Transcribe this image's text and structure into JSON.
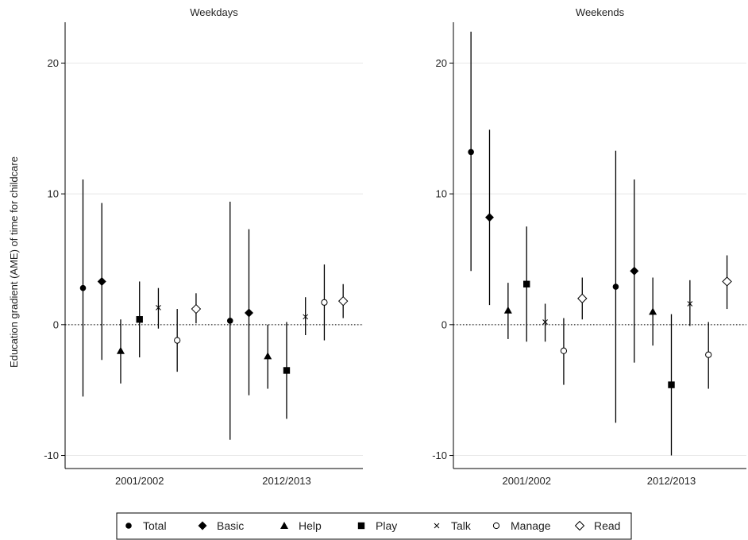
{
  "chart_data": {
    "type": "scatter",
    "subtype": "point-range (estimate with confidence interval)",
    "ylabel": "Education gradient (AME) of time for childcare",
    "ylim": [
      -11,
      23
    ],
    "yticks": [
      -10,
      0,
      10,
      20
    ],
    "ytick_labels": [
      "-10",
      "0",
      "10",
      "20"
    ],
    "reference_line": {
      "y": 0,
      "style": "dotted"
    },
    "grid": "horizontal",
    "legend": {
      "position": "bottom",
      "entries": [
        {
          "name": "Total",
          "marker": "filled-circle"
        },
        {
          "name": "Basic",
          "marker": "filled-diamond"
        },
        {
          "name": "Help",
          "marker": "filled-triangle"
        },
        {
          "name": "Play",
          "marker": "filled-square"
        },
        {
          "name": "Talk",
          "marker": "x"
        },
        {
          "name": "Manage",
          "marker": "hollow-circle"
        },
        {
          "name": "Read",
          "marker": "hollow-diamond"
        }
      ]
    },
    "categories": [
      "2001/2002",
      "2012/2013"
    ],
    "panels": [
      {
        "title": "Weekdays",
        "series": [
          {
            "name": "Total",
            "marker": "filled-circle",
            "values": [
              2.8,
              0.3
            ],
            "lower": [
              -5.5,
              -8.8
            ],
            "upper": [
              11.1,
              9.4
            ]
          },
          {
            "name": "Basic",
            "marker": "filled-diamond",
            "values": [
              3.3,
              0.9
            ],
            "lower": [
              -2.7,
              -5.4
            ],
            "upper": [
              9.3,
              7.3
            ]
          },
          {
            "name": "Help",
            "marker": "filled-triangle",
            "values": [
              -2.0,
              -2.4
            ],
            "lower": [
              -4.5,
              -4.9
            ],
            "upper": [
              0.4,
              0.0
            ]
          },
          {
            "name": "Play",
            "marker": "filled-square",
            "values": [
              0.4,
              -3.5
            ],
            "lower": [
              -2.5,
              -7.2
            ],
            "upper": [
              3.3,
              0.2
            ]
          },
          {
            "name": "Talk",
            "marker": "x",
            "values": [
              1.3,
              0.6
            ],
            "lower": [
              -0.3,
              -0.8
            ],
            "upper": [
              2.8,
              2.1
            ]
          },
          {
            "name": "Manage",
            "marker": "hollow-circle",
            "values": [
              -1.2,
              1.7
            ],
            "lower": [
              -3.6,
              -1.2
            ],
            "upper": [
              1.2,
              4.6
            ]
          },
          {
            "name": "Read",
            "marker": "hollow-diamond",
            "values": [
              1.2,
              1.8
            ],
            "lower": [
              0.1,
              0.5
            ],
            "upper": [
              2.4,
              3.1
            ]
          }
        ]
      },
      {
        "title": "Weekends",
        "series": [
          {
            "name": "Total",
            "marker": "filled-circle",
            "values": [
              13.2,
              2.9
            ],
            "lower": [
              4.1,
              -7.5
            ],
            "upper": [
              22.4,
              13.3
            ]
          },
          {
            "name": "Basic",
            "marker": "filled-diamond",
            "values": [
              8.2,
              4.1
            ],
            "lower": [
              1.5,
              -2.9
            ],
            "upper": [
              14.9,
              11.1
            ]
          },
          {
            "name": "Help",
            "marker": "filled-triangle",
            "values": [
              1.1,
              1.0
            ],
            "lower": [
              -1.1,
              -1.6
            ],
            "upper": [
              3.2,
              3.6
            ]
          },
          {
            "name": "Play",
            "marker": "filled-square",
            "values": [
              3.1,
              -4.6
            ],
            "lower": [
              -1.3,
              -10.0
            ],
            "upper": [
              7.5,
              0.8
            ]
          },
          {
            "name": "Talk",
            "marker": "x",
            "values": [
              0.2,
              1.6
            ],
            "lower": [
              -1.3,
              -0.1
            ],
            "upper": [
              1.6,
              3.4
            ]
          },
          {
            "name": "Manage",
            "marker": "hollow-circle",
            "values": [
              -2.0,
              -2.3
            ],
            "lower": [
              -4.6,
              -4.9
            ],
            "upper": [
              0.5,
              0.2
            ]
          },
          {
            "name": "Read",
            "marker": "hollow-diamond",
            "values": [
              2.0,
              3.3
            ],
            "lower": [
              0.4,
              1.2
            ],
            "upper": [
              3.6,
              5.3
            ]
          }
        ]
      }
    ]
  }
}
